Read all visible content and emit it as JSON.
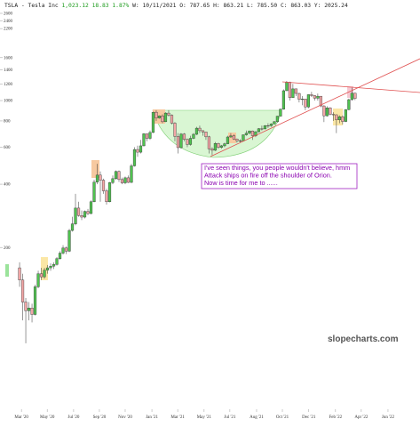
{
  "header": {
    "symbol": "TSLA - Tesla Inc",
    "last": "1,023.12",
    "change": "18.83",
    "change_pct": "1.87%",
    "ohlc": "W: 10/11/2021 O: 787.65 H: 863.21 L: 785.50 C: 863.03 Y: 2025.24"
  },
  "annotation": [
    "I've seen things, you people wouldn't believe, hmm",
    "Attack ships on fire off the shoulder of Orion.",
    "Now is time for me to ......"
  ],
  "watermark": "slopecharts.com",
  "chart_data": {
    "type": "candlestick",
    "log_scale": true,
    "up_color": "#4fc24f",
    "down_color": "#f2a6a6",
    "ylim": [
      34,
      2730
    ],
    "yticks": [
      2600,
      2400,
      2200,
      1600,
      1400,
      1200,
      1000,
      800,
      600,
      400,
      200
    ],
    "xlim": [
      -6.3,
      128.9
    ],
    "xticks": [
      {
        "value": 0.6,
        "label": "Mar '20"
      },
      {
        "value": 8.9,
        "label": "May '20"
      },
      {
        "value": 17.4,
        "label": "Jul '20"
      },
      {
        "value": 25.7,
        "label": "Sep '20"
      },
      {
        "value": 34,
        "label": "Nov '20"
      },
      {
        "value": 42.6,
        "label": "Jan '21"
      },
      {
        "value": 50.9,
        "label": "Mar '21"
      },
      {
        "value": 59.4,
        "label": "May '21"
      },
      {
        "value": 67.7,
        "label": "Jul '21"
      },
      {
        "value": 76.3,
        "label": "Aug '21"
      },
      {
        "value": 84.6,
        "label": "Oct '21"
      },
      {
        "value": 93.1,
        "label": "Dec '21"
      },
      {
        "value": 101.7,
        "label": "Feb '22"
      },
      {
        "value": 110,
        "label": "Apr '22"
      },
      {
        "value": 118.6,
        "label": "Jun '22"
      }
    ],
    "open": [
      160,
      140,
      110,
      100,
      103,
      96,
      130,
      150,
      145,
      156,
      160,
      163,
      166,
      177,
      188,
      199,
      192,
      241,
      259,
      308,
      284,
      279,
      297,
      290,
      330,
      409,
      442,
      418,
      372,
      330,
      407,
      425,
      460,
      421,
      406,
      429,
      408,
      489,
      585,
      568,
      609,
      695,
      661,
      705,
      880,
      826,
      846,
      793,
      872,
      852,
      781,
      675,
      597,
      693,
      654,
      618,
      661,
      691,
      739,
      719,
      709,
      672,
      589,
      580,
      625,
      599,
      609,
      623,
      671,
      679,
      656,
      644,
      643,
      687,
      699,
      717,
      680,
      711,
      735,
      733,
      760,
      759,
      774,
      793,
      843,
      910,
      1114,
      1222,
      1033,
      1137,
      1081,
      1014,
      1017,
      932,
      1067,
      1056,
      1026,
      1049,
      943,
      846,
      923,
      860,
      856,
      809,
      838,
      795,
      905,
      1010,
      1084
    ],
    "high": [
      170,
      150,
      115,
      110,
      108,
      133,
      155,
      160,
      160,
      165,
      168,
      170,
      180,
      192,
      205,
      202,
      245,
      280,
      360,
      330,
      300,
      300,
      305,
      335,
      420,
      500,
      460,
      425,
      380,
      410,
      440,
      465,
      465,
      430,
      435,
      440,
      500,
      600,
      610,
      650,
      700,
      695,
      720,
      885,
      900,
      850,
      860,
      880,
      900,
      860,
      790,
      700,
      700,
      700,
      660,
      680,
      700,
      750,
      760,
      720,
      710,
      680,
      600,
      635,
      630,
      615,
      630,
      680,
      700,
      690,
      660,
      655,
      690,
      720,
      720,
      720,
      715,
      740,
      760,
      765,
      780,
      780,
      800,
      845,
      915,
      1130,
      1240,
      1230,
      1200,
      1140,
      1090,
      1050,
      1020,
      1070,
      1100,
      1060,
      1080,
      1050,
      950,
      940,
      930,
      880,
      860,
      850,
      850,
      910,
      1020,
      1150,
      1090
    ],
    "low": [
      130,
      90,
      70,
      90,
      88,
      95,
      128,
      140,
      142,
      150,
      155,
      158,
      164,
      175,
      185,
      186,
      190,
      238,
      255,
      280,
      270,
      275,
      285,
      288,
      328,
      400,
      330,
      360,
      320,
      328,
      400,
      420,
      410,
      400,
      400,
      405,
      405,
      485,
      540,
      560,
      605,
      640,
      650,
      700,
      800,
      820,
      780,
      790,
      840,
      770,
      640,
      560,
      590,
      640,
      600,
      610,
      655,
      685,
      700,
      680,
      650,
      560,
      550,
      575,
      590,
      590,
      600,
      620,
      665,
      650,
      630,
      630,
      640,
      680,
      690,
      650,
      670,
      705,
      720,
      730,
      740,
      750,
      770,
      785,
      840,
      905,
      1110,
      1000,
      1030,
      1050,
      980,
      950,
      900,
      920,
      1040,
      1000,
      1000,
      930,
      790,
      840,
      850,
      800,
      700,
      780,
      770,
      790,
      900,
      1000,
      1005
    ],
    "close": [
      140,
      110,
      100,
      103,
      96,
      130,
      150,
      145,
      156,
      160,
      163,
      166,
      177,
      188,
      199,
      192,
      241,
      259,
      308,
      284,
      279,
      297,
      290,
      330,
      409,
      442,
      418,
      372,
      330,
      407,
      425,
      460,
      421,
      406,
      429,
      408,
      489,
      585,
      568,
      609,
      695,
      661,
      705,
      880,
      826,
      846,
      793,
      872,
      852,
      781,
      675,
      597,
      693,
      654,
      618,
      661,
      691,
      739,
      719,
      709,
      672,
      589,
      580,
      625,
      599,
      609,
      623,
      671,
      679,
      656,
      644,
      643,
      687,
      699,
      717,
      680,
      711,
      735,
      733,
      760,
      759,
      774,
      793,
      843,
      910,
      1114,
      1222,
      1033,
      1137,
      1081,
      1014,
      1017,
      932,
      1067,
      1056,
      1026,
      1049,
      943,
      846,
      923,
      860,
      856,
      809,
      838,
      795,
      905,
      1010,
      1084,
      1023
    ]
  }
}
